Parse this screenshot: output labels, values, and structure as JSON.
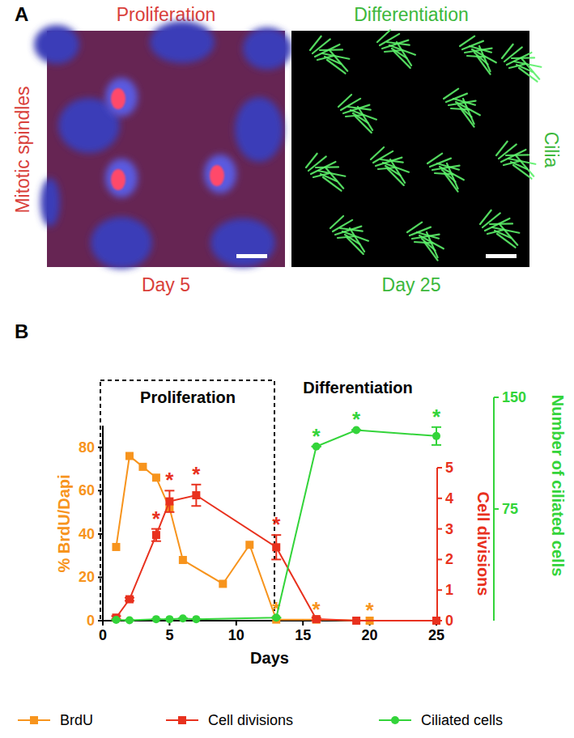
{
  "panel_labels": [
    "A",
    "B"
  ],
  "panel_a": {
    "left": {
      "title": "Proliferation",
      "side_label": "Mitotic spindles",
      "day": "Day 5"
    },
    "right": {
      "title": "Differentiation",
      "side_label": "Cilia",
      "day": "Day 25"
    }
  },
  "panel_b": {
    "regions": [
      "Proliferation",
      "Differentiation"
    ]
  },
  "chart_data": [
    {
      "type": "line",
      "x_label": "Days",
      "y_label": "% BrdU/Dapi",
      "xlim": [
        0,
        25
      ],
      "xticks": [
        0,
        5,
        10,
        15,
        20,
        25
      ],
      "ylim": [
        0,
        90
      ],
      "yticks": [
        0,
        20,
        40,
        60,
        80
      ],
      "series": [
        {
          "name": "BrdU",
          "color": "#f7941d",
          "marker": "square",
          "x": [
            1,
            2,
            3,
            4,
            5,
            6,
            9,
            11,
            13,
            16,
            20
          ],
          "values": [
            34,
            76,
            71,
            66,
            52,
            28,
            17,
            35,
            0.5,
            0.5,
            0
          ]
        }
      ],
      "annotations": [
        {
          "x": 13,
          "text": "*"
        },
        {
          "x": 16,
          "text": "*"
        },
        {
          "x": 20,
          "text": "*"
        }
      ]
    },
    {
      "type": "line",
      "y_label": "Cell divisions",
      "xlim": [
        0,
        25
      ],
      "ylim": [
        0,
        5
      ],
      "yticks": [
        0,
        1,
        2,
        3,
        4,
        5
      ],
      "tick_labels": "y",
      "series": [
        {
          "name": "Cell divisions",
          "color": "#e8311e",
          "marker": "square",
          "x": [
            1,
            2,
            4,
            5,
            7,
            13,
            16,
            19,
            25
          ],
          "values": [
            0.1,
            0.7,
            2.8,
            3.9,
            4.1,
            2.4,
            0.05,
            0,
            0
          ],
          "errors": [
            0.05,
            0.05,
            0.2,
            0.35,
            0.35,
            0.4,
            0.05,
            0,
            0
          ]
        }
      ],
      "annotations": [
        {
          "x": 4,
          "text": "*"
        },
        {
          "x": 5,
          "text": "*"
        },
        {
          "x": 7,
          "text": "*"
        },
        {
          "x": 13,
          "text": "*"
        }
      ]
    },
    {
      "type": "line",
      "y_label": "Number of ciliated cells",
      "xlim": [
        0,
        25
      ],
      "ylim": [
        0,
        150
      ],
      "yticks": [
        75,
        150
      ],
      "tick_labels": "y",
      "series": [
        {
          "name": "Ciliated cells",
          "color": "#33d43a",
          "marker": "circle",
          "x": [
            1,
            2,
            4,
            5,
            6,
            7,
            13,
            16,
            19,
            25
          ],
          "values": [
            0.5,
            0.3,
            1,
            1,
            1.5,
            1,
            2,
            117,
            128,
            124
          ],
          "errors": [
            0,
            0,
            0,
            0,
            0,
            0,
            0,
            0,
            0,
            6
          ]
        }
      ],
      "annotations": [
        {
          "x": 16,
          "text": "*"
        },
        {
          "x": 19,
          "text": "*"
        },
        {
          "x": 25,
          "text": "*"
        }
      ]
    }
  ]
}
